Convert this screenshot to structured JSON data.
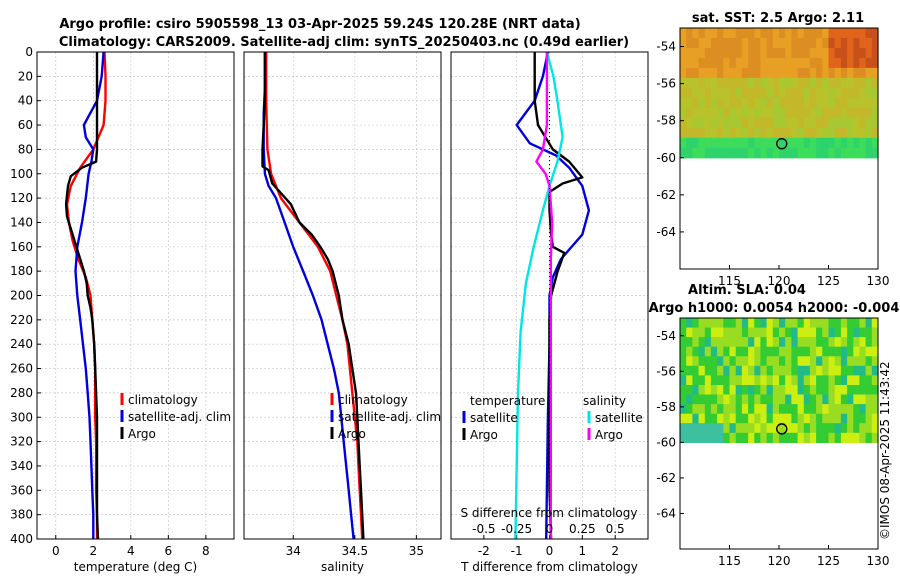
{
  "figure": {
    "title_line1": "Argo profile: csiro 5905598_13 03-Apr-2025 59.24S 120.28E (NRT data)",
    "title_line2": "Climatology: CARS2009. Satellite-adj clim: synTS_20250403.nc (0.49d earlier)",
    "copyright": "©IMOS 08-Apr-2025 11:43:42"
  },
  "colors": {
    "climatology": "#ff0000",
    "satellite": "#0000dd",
    "argo": "#000000",
    "salinity_satellite": "#00e6e6",
    "salinity_argo": "#ff00ff",
    "grid": "#c8c8c8"
  },
  "chart_data": [
    {
      "id": "temperature",
      "type": "line",
      "xlabel": "temperature (deg C)",
      "ylabel": "",
      "xlim": [
        -1,
        9.5
      ],
      "ylim": [
        0,
        400
      ],
      "xticks": [
        0,
        2,
        4,
        6,
        8
      ],
      "xtick_labels": [
        "0",
        "2",
        "4",
        "6",
        "8"
      ],
      "yticks": [
        0,
        20,
        40,
        60,
        80,
        100,
        120,
        140,
        160,
        180,
        200,
        220,
        240,
        260,
        280,
        300,
        320,
        340,
        360,
        380,
        400
      ],
      "ytick_labels": [
        "0",
        "20",
        "40",
        "60",
        "80",
        "100",
        "120",
        "140",
        "160",
        "180",
        "200",
        "220",
        "240",
        "260",
        "280",
        "300",
        "320",
        "340",
        "360",
        "380",
        "400"
      ],
      "grid": true,
      "legend": [
        "climatology",
        "satellite-adj. clim",
        "Argo"
      ],
      "series": [
        {
          "name": "climatology",
          "color_key": "climatology",
          "points": [
            [
              2.6,
              0
            ],
            [
              2.65,
              20
            ],
            [
              2.65,
              40
            ],
            [
              2.55,
              60
            ],
            [
              2.0,
              80
            ],
            [
              1.3,
              95
            ],
            [
              0.8,
              110
            ],
            [
              0.6,
              125
            ],
            [
              0.7,
              140
            ],
            [
              0.9,
              155
            ],
            [
              1.2,
              170
            ],
            [
              1.6,
              185
            ],
            [
              1.85,
              200
            ],
            [
              1.95,
              220
            ],
            [
              2.05,
              240
            ],
            [
              2.1,
              260
            ],
            [
              2.1,
              280
            ],
            [
              2.1,
              300
            ],
            [
              2.15,
              320
            ],
            [
              2.15,
              340
            ],
            [
              2.15,
              360
            ],
            [
              2.2,
              380
            ],
            [
              2.2,
              400
            ]
          ]
        },
        {
          "name": "satellite-adj. clim",
          "color_key": "satellite",
          "points": [
            [
              2.55,
              0
            ],
            [
              2.45,
              20
            ],
            [
              2.2,
              40
            ],
            [
              1.5,
              60
            ],
            [
              1.6,
              70
            ],
            [
              2.0,
              80
            ],
            [
              1.9,
              90
            ],
            [
              1.75,
              100
            ],
            [
              1.6,
              120
            ],
            [
              1.4,
              140
            ],
            [
              1.15,
              160
            ],
            [
              1.05,
              180
            ],
            [
              1.15,
              200
            ],
            [
              1.3,
              220
            ],
            [
              1.45,
              240
            ],
            [
              1.6,
              260
            ],
            [
              1.7,
              280
            ],
            [
              1.8,
              300
            ],
            [
              1.85,
              320
            ],
            [
              1.9,
              340
            ],
            [
              1.95,
              360
            ],
            [
              2.0,
              380
            ],
            [
              2.0,
              400
            ]
          ]
        },
        {
          "name": "Argo",
          "color_key": "argo",
          "points": [
            [
              2.2,
              0
            ],
            [
              2.2,
              20
            ],
            [
              2.2,
              40
            ],
            [
              2.2,
              60
            ],
            [
              2.2,
              80
            ],
            [
              2.15,
              90
            ],
            [
              1.4,
              95
            ],
            [
              0.8,
              102
            ],
            [
              0.65,
              110
            ],
            [
              0.55,
              125
            ],
            [
              0.6,
              135
            ],
            [
              0.9,
              150
            ],
            [
              1.1,
              160
            ],
            [
              1.3,
              170
            ],
            [
              1.5,
              180
            ],
            [
              1.65,
              190
            ],
            [
              1.7,
              200
            ],
            [
              1.85,
              210
            ],
            [
              1.95,
              220
            ],
            [
              2.05,
              240
            ],
            [
              2.1,
              260
            ],
            [
              2.15,
              280
            ],
            [
              2.2,
              300
            ],
            [
              2.2,
              320
            ],
            [
              2.2,
              340
            ],
            [
              2.2,
              360
            ],
            [
              2.2,
              380
            ],
            [
              2.25,
              400
            ]
          ]
        }
      ]
    },
    {
      "id": "salinity",
      "type": "line",
      "xlabel": "salinity",
      "xlim": [
        33.6,
        35.2
      ],
      "ylim": [
        0,
        400
      ],
      "xticks": [
        34,
        34.5,
        35
      ],
      "xtick_labels": [
        "34",
        "34.5",
        "35"
      ],
      "grid": true,
      "legend": [
        "climatology",
        "satellite-adj. clim",
        "Argo"
      ],
      "series": [
        {
          "name": "climatology",
          "color_key": "climatology",
          "points": [
            [
              33.78,
              0
            ],
            [
              33.78,
              40
            ],
            [
              33.79,
              80
            ],
            [
              33.82,
              100
            ],
            [
              33.9,
              120
            ],
            [
              34.05,
              140
            ],
            [
              34.2,
              160
            ],
            [
              34.3,
              180
            ],
            [
              34.35,
              200
            ],
            [
              34.4,
              220
            ],
            [
              34.44,
              240
            ],
            [
              34.46,
              260
            ],
            [
              34.48,
              280
            ],
            [
              34.5,
              300
            ],
            [
              34.52,
              320
            ],
            [
              34.53,
              340
            ],
            [
              34.54,
              360
            ],
            [
              34.55,
              380
            ],
            [
              34.56,
              400
            ]
          ]
        },
        {
          "name": "satellite-adj. clim",
          "color_key": "satellite",
          "points": [
            [
              33.77,
              0
            ],
            [
              33.77,
              30
            ],
            [
              33.76,
              50
            ],
            [
              33.76,
              80
            ],
            [
              33.77,
              100
            ],
            [
              33.8,
              110
            ],
            [
              33.86,
              120
            ],
            [
              33.93,
              140
            ],
            [
              34.0,
              160
            ],
            [
              34.08,
              180
            ],
            [
              34.16,
              200
            ],
            [
              34.23,
              220
            ],
            [
              34.28,
              240
            ],
            [
              34.33,
              260
            ],
            [
              34.37,
              280
            ],
            [
              34.39,
              300
            ],
            [
              34.41,
              320
            ],
            [
              34.43,
              340
            ],
            [
              34.45,
              360
            ],
            [
              34.47,
              380
            ],
            [
              34.49,
              400
            ]
          ]
        },
        {
          "name": "Argo",
          "color_key": "argo",
          "points": [
            [
              33.77,
              0
            ],
            [
              33.77,
              40
            ],
            [
              33.75,
              80
            ],
            [
              33.75,
              94
            ],
            [
              33.8,
              97
            ],
            [
              33.83,
              108
            ],
            [
              33.98,
              125
            ],
            [
              34.05,
              140
            ],
            [
              34.15,
              150
            ],
            [
              34.22,
              160
            ],
            [
              34.28,
              170
            ],
            [
              34.32,
              180
            ],
            [
              34.37,
              200
            ],
            [
              34.4,
              220
            ],
            [
              34.45,
              240
            ],
            [
              34.48,
              260
            ],
            [
              34.51,
              280
            ],
            [
              34.52,
              300
            ],
            [
              34.53,
              320
            ],
            [
              34.54,
              340
            ],
            [
              34.55,
              360
            ],
            [
              34.56,
              380
            ],
            [
              34.57,
              400
            ]
          ]
        }
      ]
    },
    {
      "id": "difference",
      "type": "line",
      "xlabel": "T difference from climatology",
      "top_axis_label": "S difference from climatology",
      "xlim": [
        -3,
        3
      ],
      "ylim": [
        0,
        400
      ],
      "xticks": [
        -2,
        -1,
        0,
        1,
        2
      ],
      "xtick_labels": [
        "-2",
        "-1",
        "0",
        "1",
        "2"
      ],
      "top_ticks": [
        -0.5,
        -0.25,
        0,
        0.25,
        0.5
      ],
      "top_tick_labels": [
        "-0.5",
        "-0.25",
        "0",
        "0.25",
        "0.5"
      ],
      "grid": true,
      "legend_temperature_title": "temperature",
      "legend_salinity_title": "salinity",
      "legend_temperature": [
        "satellite",
        "Argo"
      ],
      "legend_salinity": [
        "satellite",
        "Argo"
      ],
      "series": [
        {
          "name": "temperature satellite",
          "color_key": "satellite",
          "points": [
            [
              -0.05,
              0
            ],
            [
              -0.2,
              20
            ],
            [
              -0.45,
              40
            ],
            [
              -1.0,
              60
            ],
            [
              -0.6,
              75
            ],
            [
              0.2,
              85
            ],
            [
              0.6,
              95
            ],
            [
              1.0,
              110
            ],
            [
              1.2,
              130
            ],
            [
              1.0,
              150
            ],
            [
              0.35,
              170
            ],
            [
              0.1,
              185
            ],
            [
              0.0,
              200
            ],
            [
              0.0,
              240
            ],
            [
              -0.05,
              300
            ],
            [
              -0.1,
              400
            ]
          ]
        },
        {
          "name": "temperature Argo",
          "color_key": "argo",
          "points": [
            [
              -0.45,
              0
            ],
            [
              -0.45,
              20
            ],
            [
              -0.45,
              40
            ],
            [
              -0.35,
              60
            ],
            [
              0.1,
              80
            ],
            [
              0.6,
              90
            ],
            [
              1.0,
              103
            ],
            [
              0.4,
              108
            ],
            [
              0.0,
              115
            ],
            [
              0.0,
              130
            ],
            [
              0.05,
              150
            ],
            [
              0.1,
              160
            ],
            [
              0.45,
              165
            ],
            [
              0.25,
              180
            ],
            [
              0.05,
              200
            ],
            [
              0.0,
              220
            ],
            [
              0.0,
              300
            ],
            [
              0.0,
              360
            ],
            [
              0.05,
              400
            ]
          ]
        },
        {
          "name": "salinity satellite",
          "color_key": "salinity_satellite",
          "points": [
            [
              -0.02,
              0
            ],
            [
              0.03,
              20
            ],
            [
              0.06,
              40
            ],
            [
              0.1,
              70
            ],
            [
              0.06,
              90
            ],
            [
              0.0,
              110
            ],
            [
              -0.05,
              130
            ],
            [
              -0.12,
              160
            ],
            [
              -0.18,
              190
            ],
            [
              -0.22,
              230
            ],
            [
              -0.24,
              280
            ],
            [
              -0.25,
              340
            ],
            [
              -0.26,
              400
            ]
          ]
        },
        {
          "name": "salinity Argo",
          "color_key": "salinity_argo",
          "points": [
            [
              -0.02,
              0
            ],
            [
              -0.02,
              20
            ],
            [
              -0.02,
              40
            ],
            [
              -0.02,
              60
            ],
            [
              -0.05,
              80
            ],
            [
              -0.1,
              90
            ],
            [
              -0.03,
              100
            ],
            [
              0.0,
              110
            ],
            [
              0.02,
              140
            ],
            [
              0.01,
              170
            ],
            [
              0.01,
              200
            ],
            [
              0.01,
              250
            ],
            [
              0.01,
              300
            ],
            [
              0.01,
              400
            ]
          ]
        }
      ]
    },
    {
      "id": "sst_map",
      "type": "heatmap",
      "title": "sat. SST: 2.5 Argo: 2.11",
      "xlim": [
        110,
        130
      ],
      "ylim": [
        -66,
        -53
      ],
      "data_extent": [
        -60,
        -53
      ],
      "xticks": [
        115,
        120,
        125,
        130
      ],
      "xtick_labels": [
        "115",
        "120",
        "125",
        "130"
      ],
      "yticks": [
        -54,
        -56,
        -58,
        -60,
        -62,
        -64
      ],
      "ytick_labels": [
        "-54",
        "-56",
        "-58",
        "-60",
        "-62",
        "-64"
      ],
      "float_position": [
        120.28,
        -59.24
      ]
    },
    {
      "id": "sla_map",
      "type": "heatmap",
      "title_line1": "Altim. SLA: 0.04",
      "title_line2": "Argo h1000: 0.0054 h2000: -0.004",
      "xlim": [
        110,
        130
      ],
      "ylim": [
        -66,
        -53
      ],
      "data_extent": [
        -60,
        -53
      ],
      "xticks": [
        115,
        120,
        125,
        130
      ],
      "xtick_labels": [
        "115",
        "120",
        "125",
        "130"
      ],
      "yticks": [
        -54,
        -56,
        -58,
        -60,
        -62,
        -64
      ],
      "ytick_labels": [
        "-54",
        "-56",
        "-58",
        "-60",
        "-62",
        "-64"
      ],
      "float_position": [
        120.28,
        -59.24
      ]
    }
  ]
}
